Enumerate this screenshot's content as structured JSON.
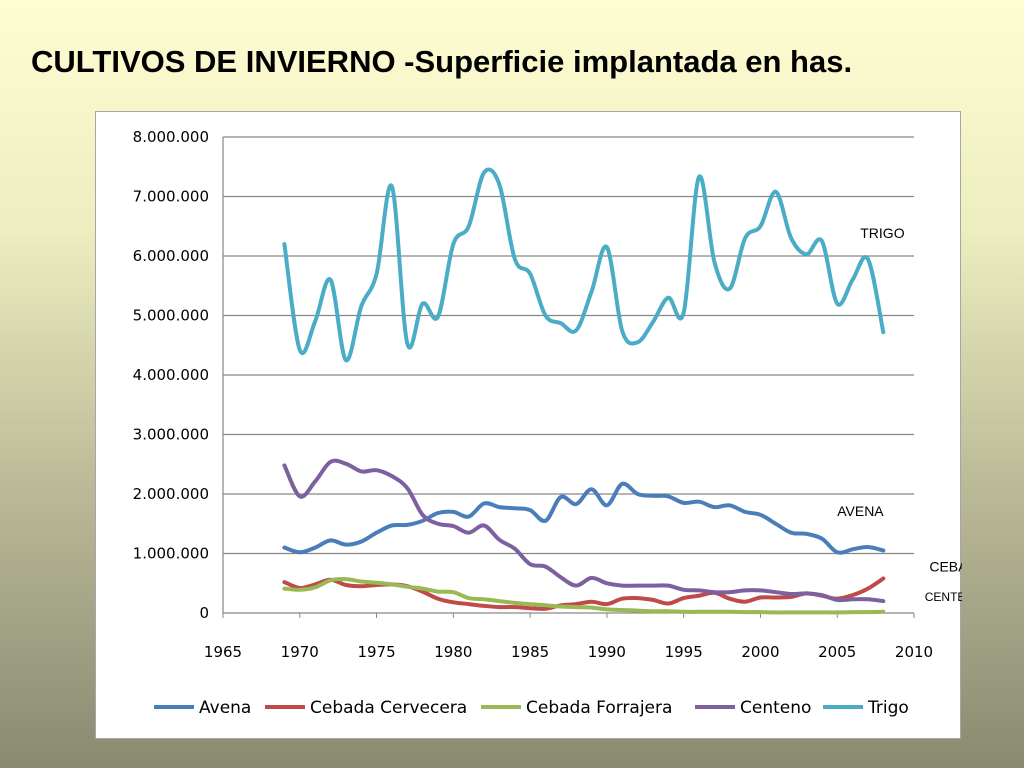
{
  "slide": {
    "title": "CULTIVOS DE INVIERNO -Superficie implantada en has."
  },
  "chart_data": {
    "type": "line",
    "title": "",
    "xlabel": "",
    "ylabel": "",
    "xlim": [
      1965,
      2010
    ],
    "ylim": [
      0,
      8000000
    ],
    "x_ticks": [
      1965,
      1970,
      1975,
      1980,
      1985,
      1990,
      1995,
      2000,
      2005,
      2010
    ],
    "x_tick_labels": [
      "1965",
      "1970",
      "1975",
      "1980",
      "1985",
      "1990",
      "1995",
      "2000",
      "2005",
      "2010"
    ],
    "y_ticks": [
      0,
      1000000,
      2000000,
      3000000,
      4000000,
      5000000,
      6000000,
      7000000,
      8000000
    ],
    "y_tick_labels": [
      "0",
      "1.000.000",
      "2.000.000",
      "3.000.000",
      "4.000.000",
      "5.000.000",
      "6.000.000",
      "7.000.000",
      "8.000.000"
    ],
    "grid": "horizontal",
    "legend_position": "bottom",
    "x": [
      1969,
      1970,
      1971,
      1972,
      1973,
      1974,
      1975,
      1976,
      1977,
      1978,
      1979,
      1980,
      1981,
      1982,
      1983,
      1984,
      1985,
      1986,
      1987,
      1988,
      1989,
      1990,
      1991,
      1992,
      1993,
      1994,
      1995,
      1996,
      1997,
      1998,
      1999,
      2000,
      2001,
      2002,
      2003,
      2004,
      2005,
      2006,
      2007,
      2008
    ],
    "series": [
      {
        "name": "Avena",
        "color": "#4a7ebb",
        "values": [
          1100000,
          1020000,
          1100000,
          1220000,
          1150000,
          1200000,
          1350000,
          1470000,
          1480000,
          1550000,
          1680000,
          1700000,
          1620000,
          1840000,
          1780000,
          1760000,
          1730000,
          1550000,
          1950000,
          1830000,
          2080000,
          1810000,
          2170000,
          2000000,
          1970000,
          1960000,
          1850000,
          1870000,
          1780000,
          1810000,
          1700000,
          1650000,
          1500000,
          1350000,
          1330000,
          1250000,
          1020000,
          1070000,
          1110000,
          1050000
        ]
      },
      {
        "name": "Cebada Cervecera",
        "color": "#be4b48",
        "values": [
          520000,
          420000,
          480000,
          560000,
          470000,
          450000,
          470000,
          480000,
          450000,
          360000,
          240000,
          180000,
          150000,
          120000,
          100000,
          100000,
          80000,
          70000,
          130000,
          150000,
          190000,
          150000,
          240000,
          250000,
          220000,
          160000,
          250000,
          290000,
          340000,
          240000,
          190000,
          260000,
          260000,
          270000,
          330000,
          290000,
          240000,
          300000,
          410000,
          580000
        ]
      },
      {
        "name": "Cebada Forrajera",
        "color": "#98b954",
        "values": [
          410000,
          390000,
          430000,
          550000,
          570000,
          530000,
          510000,
          480000,
          440000,
          410000,
          360000,
          350000,
          250000,
          230000,
          200000,
          170000,
          150000,
          130000,
          110000,
          100000,
          90000,
          60000,
          50000,
          40000,
          30000,
          30000,
          20000,
          20000,
          20000,
          20000,
          15000,
          15000,
          10000,
          10000,
          10000,
          10000,
          10000,
          15000,
          15000,
          20000
        ]
      },
      {
        "name": "Centeno",
        "color": "#7d60a0",
        "values": [
          2480000,
          1960000,
          2210000,
          2540000,
          2510000,
          2380000,
          2400000,
          2300000,
          2100000,
          1650000,
          1500000,
          1460000,
          1350000,
          1470000,
          1230000,
          1080000,
          820000,
          780000,
          600000,
          460000,
          590000,
          500000,
          460000,
          460000,
          460000,
          460000,
          390000,
          380000,
          350000,
          350000,
          380000,
          380000,
          350000,
          320000,
          330000,
          300000,
          220000,
          230000,
          230000,
          200000
        ]
      },
      {
        "name": "Trigo",
        "color": "#4bacc6",
        "values": [
          6200000,
          4420000,
          4900000,
          5600000,
          4250000,
          5150000,
          5700000,
          7170000,
          4530000,
          5200000,
          4980000,
          6200000,
          6500000,
          7400000,
          7200000,
          5950000,
          5700000,
          5000000,
          4870000,
          4750000,
          5400000,
          6150000,
          4740000,
          4550000,
          4890000,
          5300000,
          5050000,
          7330000,
          5900000,
          5450000,
          6300000,
          6500000,
          7080000,
          6300000,
          6030000,
          6250000,
          5200000,
          5600000,
          5950000,
          4720000
        ]
      }
    ],
    "annotations": [
      {
        "text": "TRIGO",
        "x": 2006.5,
        "y": 6300000,
        "size": "normal"
      },
      {
        "text": "AVENA",
        "x": 2005,
        "y": 1630000,
        "size": "normal"
      },
      {
        "text": "CEBADA",
        "x": 2011,
        "y": 700000,
        "size": "normal"
      },
      {
        "text": "CENTENO",
        "x": 2010.7,
        "y": 200000,
        "size": "small"
      }
    ]
  }
}
